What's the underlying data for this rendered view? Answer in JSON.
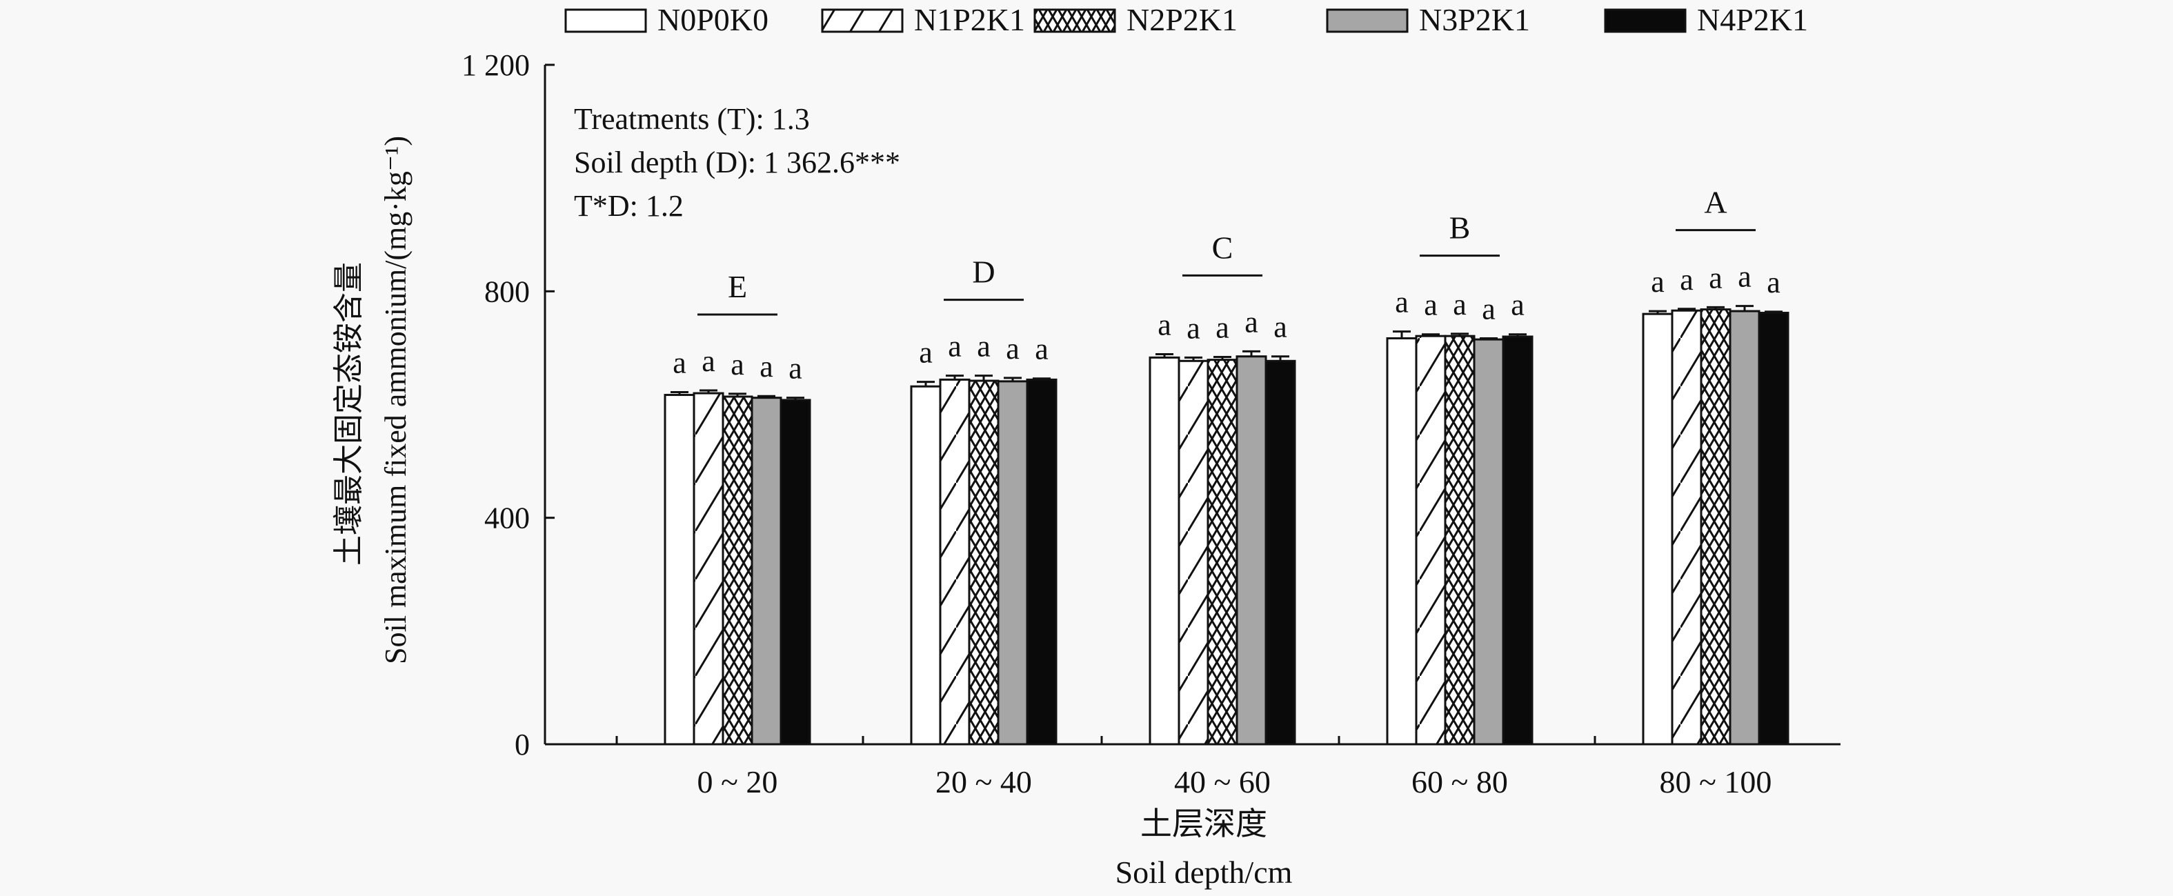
{
  "chart_data": {
    "type": "bar",
    "title": "",
    "xlabel_cn": "土层深度",
    "xlabel": "Soil depth/cm",
    "ylabel_cn": "土壤最大固定态铵含量",
    "ylabel": "Soil maximum fixed ammonium/(mg·kg⁻¹)",
    "ylim": [
      0,
      1200
    ],
    "yticks": [
      0,
      400,
      800,
      1200
    ],
    "ytick_labels": [
      "0",
      "400",
      "800",
      "1 200"
    ],
    "categories": [
      "0 ~ 20",
      "20 ~ 40",
      "40 ~ 60",
      "60 ~ 80",
      "80 ~ 100"
    ],
    "group_letters": [
      "E",
      "D",
      "C",
      "B",
      "A"
    ],
    "legend_position": "top",
    "series": [
      {
        "name": "N0P0K0",
        "pattern": "white",
        "values": [
          617,
          632,
          683,
          717,
          760
        ],
        "errors": [
          5,
          8,
          6,
          12,
          5
        ],
        "letters": [
          "a",
          "a",
          "a",
          "a",
          "a"
        ]
      },
      {
        "name": "N1P2K1",
        "pattern": "hatch",
        "values": [
          620,
          644,
          677,
          721,
          766
        ],
        "errors": [
          5,
          7,
          6,
          3,
          3
        ],
        "letters": [
          "a",
          "a",
          "a",
          "a",
          "a"
        ]
      },
      {
        "name": "N2P2K1",
        "pattern": "crosshatch",
        "values": [
          614,
          642,
          679,
          721,
          768
        ],
        "errors": [
          5,
          9,
          5,
          4,
          4
        ],
        "letters": [
          "a",
          "a",
          "a",
          "a",
          "a"
        ]
      },
      {
        "name": "N3P2K1",
        "pattern": "gray",
        "values": [
          612,
          641,
          685,
          715,
          765
        ],
        "errors": [
          3,
          6,
          9,
          2,
          9
        ],
        "letters": [
          "a",
          "a",
          "a",
          "a",
          "a"
        ]
      },
      {
        "name": "N4P2K1",
        "pattern": "black",
        "values": [
          608,
          644,
          677,
          720,
          762
        ],
        "errors": [
          4,
          2,
          8,
          4,
          2
        ],
        "letters": [
          "a",
          "a",
          "a",
          "a",
          "a"
        ]
      }
    ],
    "annotations": [
      "Treatments (T): 1.3",
      "Soil depth (D): 1 362.6***",
      "T*D: 1.2"
    ],
    "colors": {
      "white": "#ffffff",
      "gray": "#a6a6a6",
      "black": "#0a0a0a",
      "stroke": "#111111"
    }
  }
}
